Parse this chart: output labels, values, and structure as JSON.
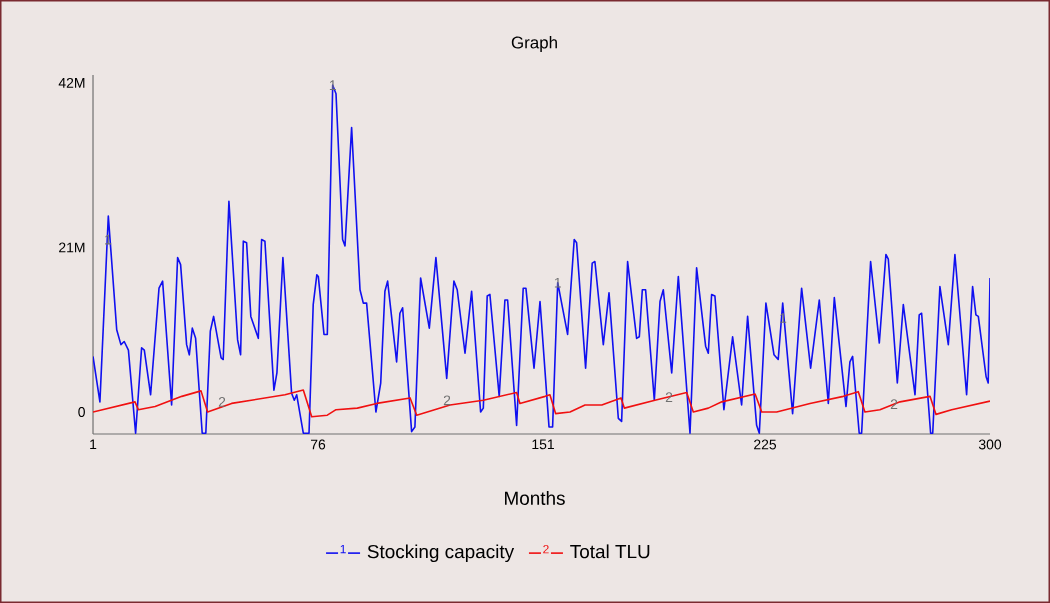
{
  "chart_data": {
    "type": "line",
    "title": "Graph",
    "xlabel": "Months",
    "xlim": [
      1,
      300
    ],
    "xticks": [
      1,
      76,
      151,
      225,
      300
    ],
    "ylim": [
      -2.8,
      43
    ],
    "yticks": [
      0,
      {
        "value": 21,
        "label": "21M"
      },
      {
        "value": 42,
        "label": "42M"
      }
    ],
    "annotations": [
      "1",
      "2",
      {
        "text": "1",
        "x": 6,
        "y": 22.0
      },
      {
        "text": "1",
        "x": 80.9,
        "y": 41.7
      },
      {
        "text": "1",
        "x": 155.9,
        "y": 16.5
      },
      {
        "text": "1",
        "x": 231,
        "y": 12.0
      },
      {
        "text": "2",
        "x": 44,
        "y": 1.3
      },
      {
        "text": "2",
        "x": 119,
        "y": 1.5
      },
      {
        "text": "2",
        "x": 193,
        "y": 1.9
      },
      {
        "text": "2",
        "x": 268,
        "y": 1.0
      }
    ],
    "legend": "bottom",
    "grid": false,
    "marker": "none",
    "line_style": "solid",
    "series": [
      {
        "name": "Stocking capacity",
        "color": "#1010f0",
        "x": [
          1,
          3.3,
          6.1,
          7,
          8.9,
          10.3,
          11.4,
          12.8,
          15.2,
          17.2,
          18.1,
          20.2,
          23,
          24.2,
          27.2,
          29.2,
          30.2,
          32.2,
          33.1,
          34.1,
          35.2,
          37.4,
          38.6,
          40.1,
          41.2,
          43.7,
          44.4,
          46.3,
          49.2,
          50.2,
          51.1,
          52.2,
          53.6,
          56.1,
          57.2,
          58.3,
          61.3,
          62.3,
          64.3,
          67.2,
          68.1,
          68.9,
          71.1,
          73,
          74.4,
          75.6,
          76.1,
          78,
          79.1,
          80.9,
          82,
          84.2,
          85,
          87.2,
          90,
          91.1,
          92.2,
          95.3,
          96.9,
          98.3,
          99.2,
          102.2,
          103.3,
          104.2,
          107.2,
          108.3,
          110.2,
          113.1,
          115.3,
          118.9,
          121.3,
          122.4,
          125,
          127.2,
          130.2,
          131.1,
          132.4,
          133.3,
          136.4,
          138.3,
          139.2,
          142.2,
          144.4,
          145.3,
          148,
          150,
          153,
          154.2,
          155.9,
          159.2,
          161.4,
          162.2,
          165.2,
          167.4,
          168.3,
          171.1,
          173,
          176.1,
          177.2,
          179.2,
          182.2,
          183.1,
          184.1,
          185.2,
          188.1,
          190,
          191.1,
          193.9,
          196.1,
          200,
          202.2,
          205.2,
          206.1,
          207.2,
          208.3,
          211.3,
          214.2,
          217.2,
          219.2,
          222.2,
          223.1,
          225.3,
          228,
          229.4,
          230.9,
          234.2,
          237.2,
          240.2,
          243.1,
          246.1,
          248.1,
          252,
          253.3,
          254.2,
          256.4,
          257.2,
          260.2,
          263.1,
          265.3,
          266.1,
          269.1,
          271.1,
          275,
          276.4,
          277.2,
          280.2,
          280.9,
          283.3,
          286.1,
          288.3,
          292.2,
          294.2,
          295.3,
          296.1,
          298.7,
          299.4,
          300
        ],
        "values": [
          7.1,
          1.3,
          25.0,
          20.4,
          10.5,
          8.6,
          9.0,
          7.9,
          -2.7,
          8.2,
          7.9,
          2.2,
          15.8,
          16.7,
          0.9,
          19.7,
          18.8,
          8.6,
          7.3,
          10.7,
          9.4,
          -2.7,
          -2.7,
          10.3,
          12.2,
          6.9,
          6.7,
          26.9,
          9.2,
          7.3,
          21.8,
          21.6,
          12.2,
          9.4,
          22.0,
          21.8,
          2.8,
          5.0,
          19.7,
          2.4,
          1.5,
          2.2,
          -2.7,
          -2.7,
          13.7,
          17.5,
          17.3,
          9.9,
          9.9,
          41.7,
          40.6,
          22.0,
          21.2,
          36.3,
          15.6,
          13.9,
          13.9,
          0.0,
          3.7,
          15.4,
          16.7,
          6.4,
          12.6,
          13.3,
          -2.5,
          -1.9,
          17.1,
          10.7,
          19.7,
          4.3,
          16.7,
          15.6,
          7.5,
          15.4,
          0.0,
          0.5,
          14.8,
          15.0,
          2.0,
          14.3,
          14.3,
          -1.7,
          15.8,
          15.8,
          5.6,
          14.1,
          -1.9,
          -1.9,
          16.5,
          9.9,
          22.0,
          21.6,
          5.6,
          19.0,
          19.2,
          8.6,
          15.2,
          -0.8,
          -1.2,
          19.2,
          9.4,
          9.6,
          15.6,
          15.6,
          1.5,
          14.1,
          15.6,
          5.0,
          17.3,
          -2.7,
          18.4,
          8.4,
          7.5,
          15.0,
          14.8,
          0.3,
          9.6,
          0.9,
          12.2,
          -1.7,
          -2.7,
          13.9,
          7.3,
          6.7,
          13.9,
          -0.2,
          15.8,
          5.6,
          14.3,
          1.1,
          14.6,
          0.7,
          6.4,
          7.1,
          -2.7,
          -2.7,
          19.2,
          8.8,
          20.1,
          19.5,
          3.7,
          13.7,
          2.2,
          12.4,
          12.6,
          -2.7,
          -2.7,
          16.0,
          8.6,
          20.1,
          2.2,
          16.0,
          12.4,
          12.2,
          4.5,
          3.7,
          17.1
        ]
      },
      {
        "name": "Total TLU",
        "color": "#f01010",
        "x": [
          1,
          15,
          16.1,
          21.7,
          30.6,
          37,
          39.2,
          47.2,
          65,
          71.1,
          73.9,
          79.1,
          82,
          89.1,
          95.6,
          106.7,
          108.9,
          120,
          131.1,
          142.2,
          143.3,
          151.7,
          153.3,
          155.2,
          160,
          165,
          170.6,
          177,
          178.1,
          188.3,
          198.9,
          201.1,
          206.1,
          210.6,
          221.7,
          223.9,
          228.9,
          240,
          251.1,
          256.1,
          258.3,
          263.3,
          270,
          280,
          282,
          287.2,
          300
        ],
        "values": [
          0.0,
          1.3,
          0.3,
          0.7,
          2.0,
          2.7,
          0.0,
          1.1,
          2.2,
          2.8,
          -0.6,
          -0.4,
          0.3,
          0.5,
          1.1,
          1.8,
          -0.4,
          0.9,
          1.5,
          2.5,
          1.1,
          2.0,
          2.2,
          -0.2,
          0.0,
          0.9,
          0.9,
          1.8,
          0.5,
          1.5,
          2.5,
          0.0,
          0.5,
          1.3,
          2.3,
          0.0,
          0.0,
          1.1,
          2.0,
          2.6,
          0.0,
          0.3,
          1.3,
          2.0,
          -0.3,
          0.3,
          1.4
        ]
      }
    ]
  }
}
